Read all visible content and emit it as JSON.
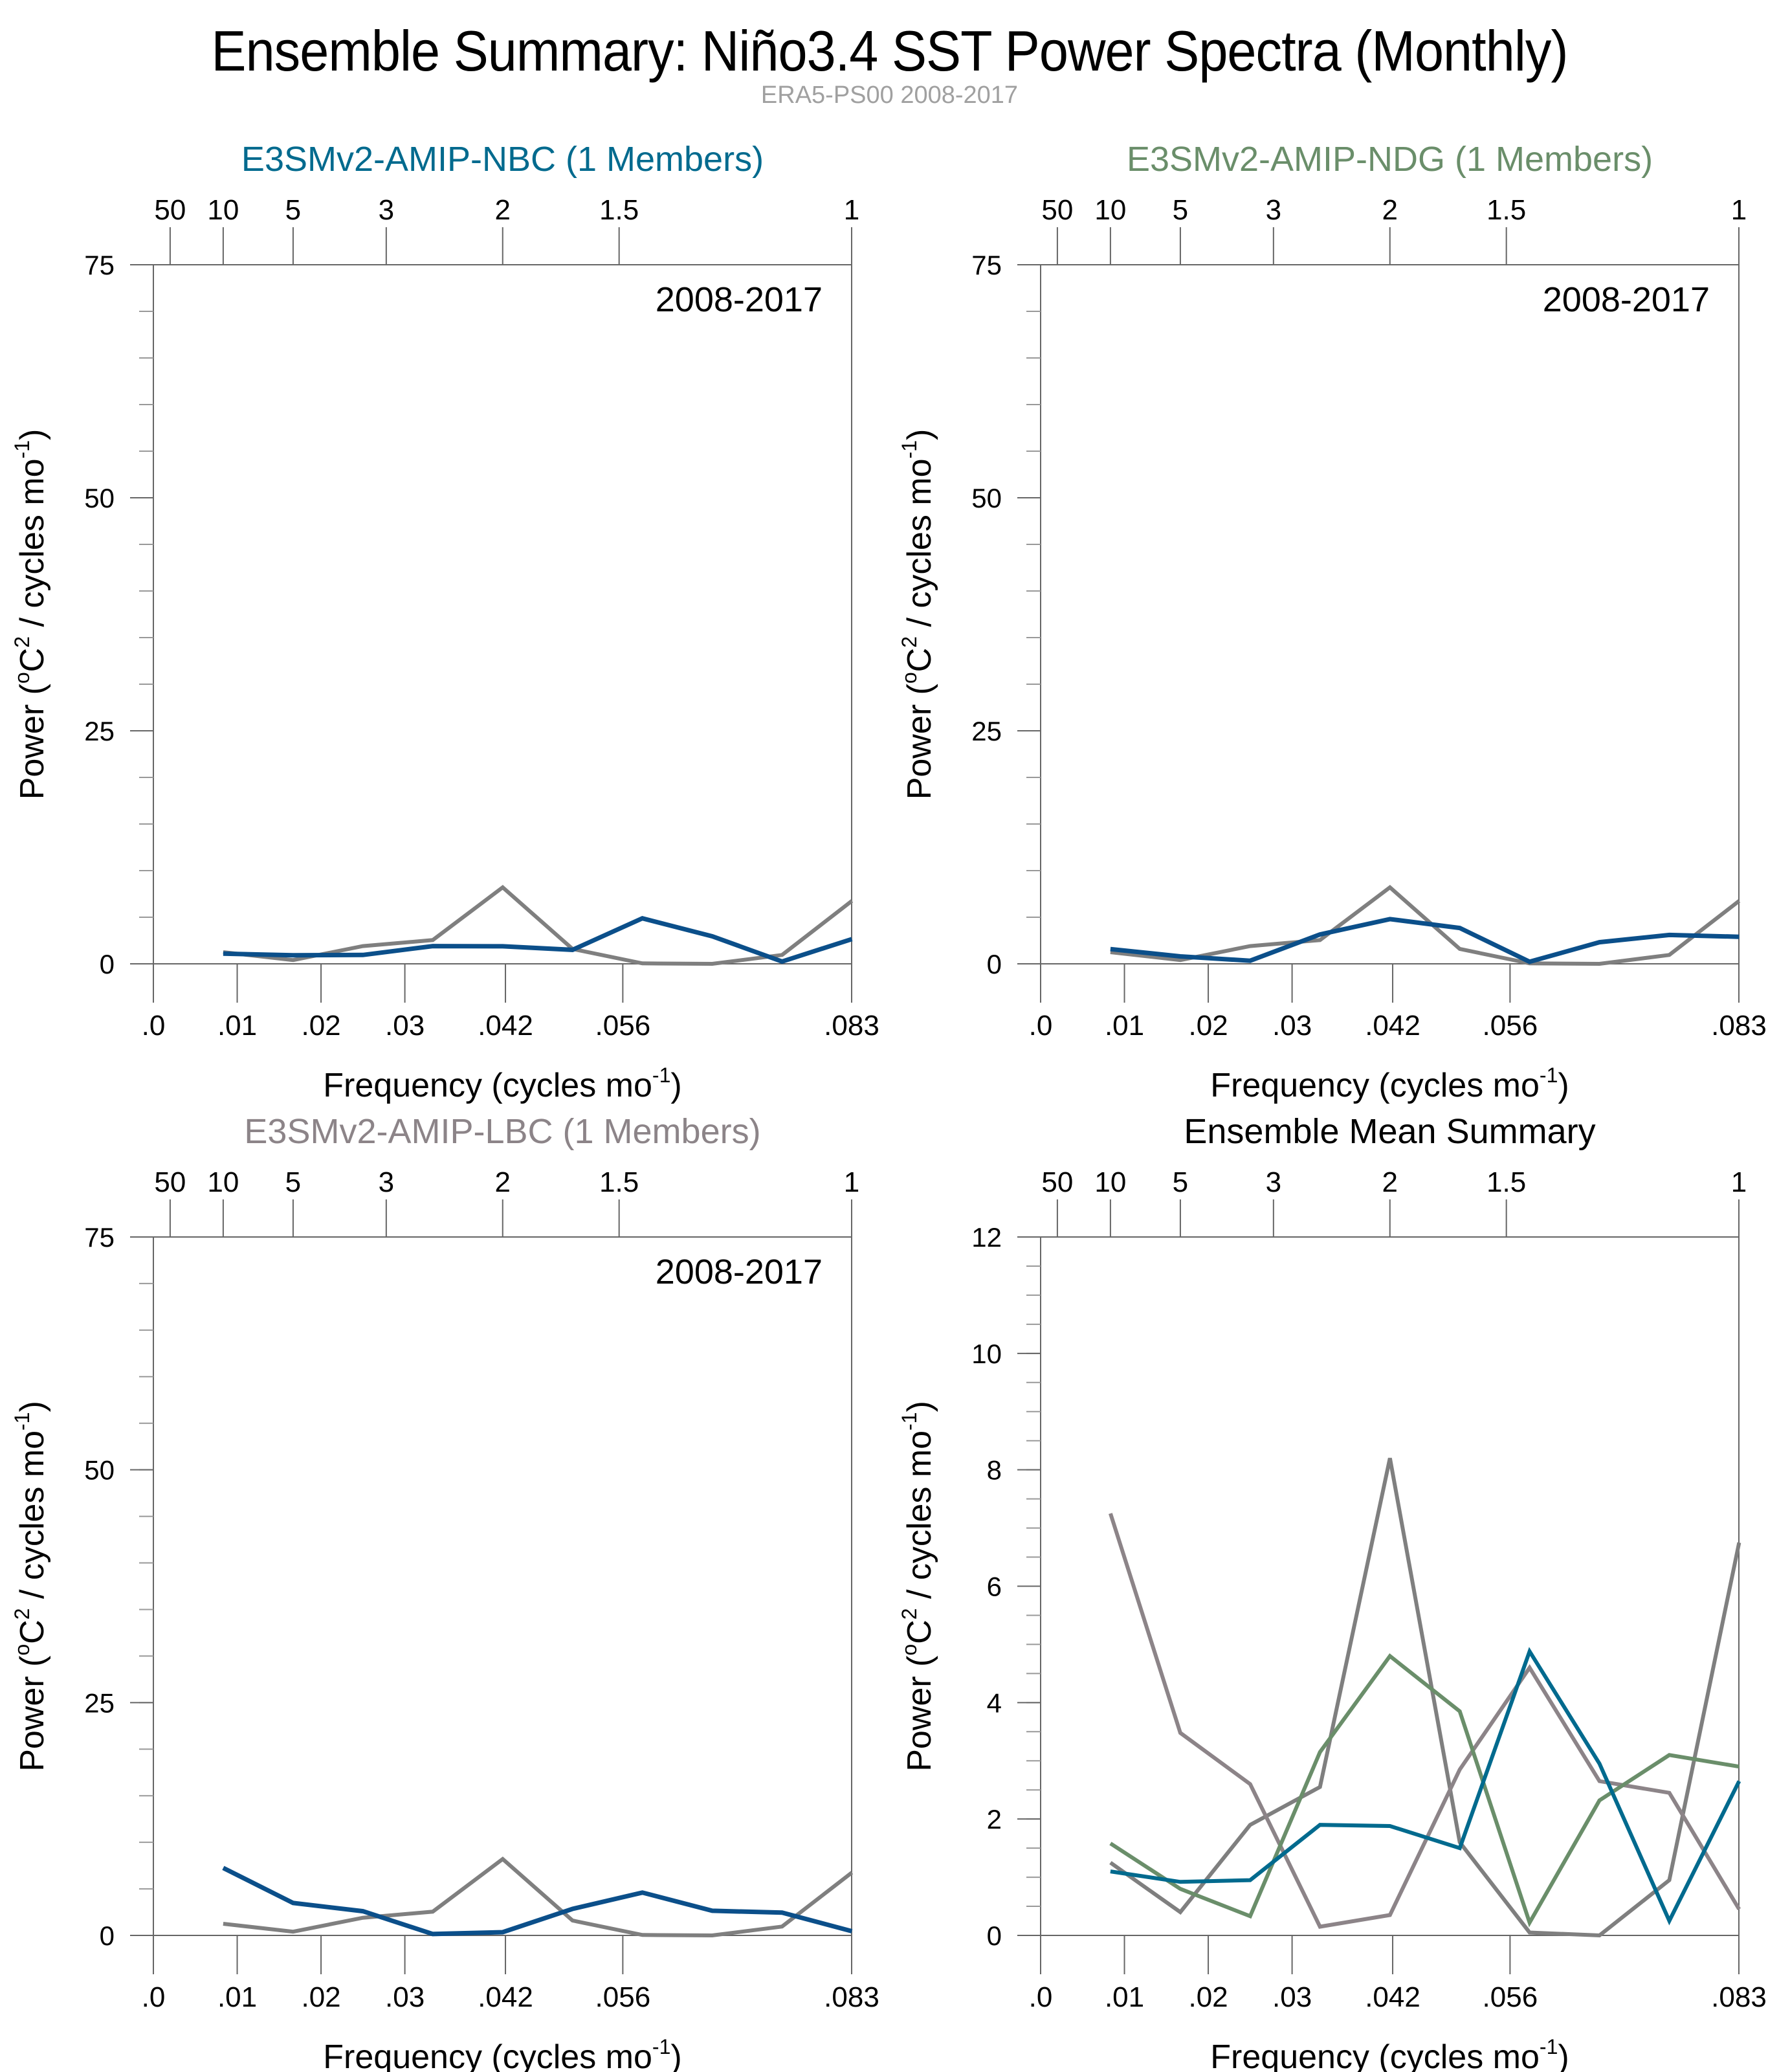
{
  "header": {
    "title": "Ensemble Summary: Niño3.4 SST Power Spectra (Monthly)",
    "subtitle": "ERA5-PS00 2008-2017"
  },
  "colors": {
    "observation": "#7f7f7f",
    "nbc": "#0b4f8a",
    "nbc_mean": "#006a8e",
    "ndg": "#6a8e6a",
    "lbc": "#8c8488",
    "axis": "#666666"
  },
  "chart_data": [
    {
      "type": "line",
      "id": "nbc",
      "title": "E3SMv2-AMIP-NBC (1 Members)",
      "title_color": "#006a8e",
      "annotation": "2008-2017",
      "xlabel": "Frequency (cycles mo",
      "xlabel_sup": "-1",
      "xlabel_close": ")",
      "ylabel": "Power (",
      "ylabel_sup1": "o",
      "ylabel_mid": "C",
      "ylabel_sup2": "2",
      "ylabel_rest": " / cycles mo",
      "ylabel_sup3": "-1",
      "ylabel_close": ")",
      "xlim": [
        0,
        0.0833
      ],
      "ylim": [
        0,
        75
      ],
      "yticks": [
        0,
        25,
        50,
        75
      ],
      "ytick_labels": [
        "0",
        "25",
        "50",
        "75"
      ],
      "y_minor_step": 5,
      "xticks": [
        0,
        0.01,
        0.02,
        0.03,
        0.042,
        0.056,
        0.0833
      ],
      "xtick_labels": [
        ".0",
        ".01",
        ".02",
        ".03",
        ".042",
        ".056",
        ".083"
      ],
      "top_ticks": [
        0.002,
        0.00833,
        0.01667,
        0.02778,
        0.04167,
        0.05556,
        0.0833
      ],
      "top_tick_labels": [
        "50",
        "10",
        "5",
        "3",
        "2",
        "1.5",
        "1"
      ],
      "x": [
        0.00833,
        0.01667,
        0.025,
        0.03333,
        0.04167,
        0.05,
        0.05833,
        0.06667,
        0.075,
        0.08333
      ],
      "series": [
        {
          "name": "ERA5-PS00",
          "color": "#7f7f7f",
          "width": 6,
          "values": [
            1.25,
            0.4,
            1.9,
            2.55,
            8.2,
            1.6,
            0.05,
            0.0,
            0.95,
            6.75
          ]
        },
        {
          "name": "E3SMv2-AMIP-NBC",
          "color": "#0b4f8a",
          "width": 7,
          "values": [
            1.1,
            0.92,
            0.95,
            1.9,
            1.88,
            1.5,
            4.88,
            2.95,
            0.25,
            2.65
          ]
        }
      ]
    },
    {
      "type": "line",
      "id": "ndg",
      "title": "E3SMv2-AMIP-NDG (1 Members)",
      "title_color": "#6a8e6a",
      "annotation": "2008-2017",
      "xlabel": "Frequency (cycles mo",
      "xlabel_sup": "-1",
      "xlabel_close": ")",
      "ylabel": "Power (",
      "ylabel_sup1": "o",
      "ylabel_mid": "C",
      "ylabel_sup2": "2",
      "ylabel_rest": " / cycles mo",
      "ylabel_sup3": "-1",
      "ylabel_close": ")",
      "xlim": [
        0,
        0.0833
      ],
      "ylim": [
        0,
        75
      ],
      "yticks": [
        0,
        25,
        50,
        75
      ],
      "ytick_labels": [
        "0",
        "25",
        "50",
        "75"
      ],
      "y_minor_step": 5,
      "xticks": [
        0,
        0.01,
        0.02,
        0.03,
        0.042,
        0.056,
        0.0833
      ],
      "xtick_labels": [
        ".0",
        ".01",
        ".02",
        ".03",
        ".042",
        ".056",
        ".083"
      ],
      "top_ticks": [
        0.002,
        0.00833,
        0.01667,
        0.02778,
        0.04167,
        0.05556,
        0.0833
      ],
      "top_tick_labels": [
        "50",
        "10",
        "5",
        "3",
        "2",
        "1.5",
        "1"
      ],
      "x": [
        0.00833,
        0.01667,
        0.025,
        0.03333,
        0.04167,
        0.05,
        0.05833,
        0.06667,
        0.075,
        0.08333
      ],
      "series": [
        {
          "name": "ERA5-PS00",
          "color": "#7f7f7f",
          "width": 6,
          "values": [
            1.25,
            0.4,
            1.9,
            2.55,
            8.2,
            1.6,
            0.05,
            0.0,
            0.95,
            6.75
          ]
        },
        {
          "name": "E3SMv2-AMIP-NDG",
          "color": "#0b4f8a",
          "width": 7,
          "values": [
            1.58,
            0.8,
            0.33,
            3.15,
            4.8,
            3.85,
            0.22,
            2.32,
            3.1,
            2.9
          ]
        }
      ]
    },
    {
      "type": "line",
      "id": "lbc",
      "title": "E3SMv2-AMIP-LBC (1 Members)",
      "title_color": "#8c8488",
      "annotation": "2008-2017",
      "xlabel": "Frequency (cycles mo",
      "xlabel_sup": "-1",
      "xlabel_close": ")",
      "ylabel": "Power (",
      "ylabel_sup1": "o",
      "ylabel_mid": "C",
      "ylabel_sup2": "2",
      "ylabel_rest": " / cycles mo",
      "ylabel_sup3": "-1",
      "ylabel_close": ")",
      "xlim": [
        0,
        0.0833
      ],
      "ylim": [
        0,
        75
      ],
      "yticks": [
        0,
        25,
        50,
        75
      ],
      "ytick_labels": [
        "0",
        "25",
        "50",
        "75"
      ],
      "y_minor_step": 5,
      "xticks": [
        0,
        0.01,
        0.02,
        0.03,
        0.042,
        0.056,
        0.0833
      ],
      "xtick_labels": [
        ".0",
        ".01",
        ".02",
        ".03",
        ".042",
        ".056",
        ".083"
      ],
      "top_ticks": [
        0.002,
        0.00833,
        0.01667,
        0.02778,
        0.04167,
        0.05556,
        0.0833
      ],
      "top_tick_labels": [
        "50",
        "10",
        "5",
        "3",
        "2",
        "1.5",
        "1"
      ],
      "x": [
        0.00833,
        0.01667,
        0.025,
        0.03333,
        0.04167,
        0.05,
        0.05833,
        0.06667,
        0.075,
        0.08333
      ],
      "series": [
        {
          "name": "ERA5-PS00",
          "color": "#7f7f7f",
          "width": 6,
          "values": [
            1.25,
            0.4,
            1.9,
            2.55,
            8.2,
            1.6,
            0.05,
            0.0,
            0.95,
            6.75
          ]
        },
        {
          "name": "E3SMv2-AMIP-LBC",
          "color": "#0b4f8a",
          "width": 7,
          "values": [
            7.25,
            3.48,
            2.6,
            0.15,
            0.35,
            2.85,
            4.6,
            2.65,
            2.45,
            0.45
          ]
        }
      ]
    },
    {
      "type": "line",
      "id": "mean",
      "title": "Ensemble Mean Summary",
      "title_color": "#000000",
      "annotation": "",
      "xlabel": "Frequency (cycles mo",
      "xlabel_sup": "-1",
      "xlabel_close": ")",
      "ylabel": "Power (",
      "ylabel_sup1": "o",
      "ylabel_mid": "C",
      "ylabel_sup2": "2",
      "ylabel_rest": " / cycles mo",
      "ylabel_sup3": "-1",
      "ylabel_close": ")",
      "xlim": [
        0,
        0.0833
      ],
      "ylim": [
        0,
        12
      ],
      "yticks": [
        0,
        2,
        4,
        6,
        8,
        10,
        12
      ],
      "ytick_labels": [
        "0",
        "2",
        "4",
        "6",
        "8",
        "10",
        "12"
      ],
      "y_minor_step": 0.5,
      "xticks": [
        0,
        0.01,
        0.02,
        0.03,
        0.042,
        0.056,
        0.0833
      ],
      "xtick_labels": [
        ".0",
        ".01",
        ".02",
        ".03",
        ".042",
        ".056",
        ".083"
      ],
      "top_ticks": [
        0.002,
        0.00833,
        0.01667,
        0.02778,
        0.04167,
        0.05556,
        0.0833
      ],
      "top_tick_labels": [
        "50",
        "10",
        "5",
        "3",
        "2",
        "1.5",
        "1"
      ],
      "x": [
        0.00833,
        0.01667,
        0.025,
        0.03333,
        0.04167,
        0.05,
        0.05833,
        0.06667,
        0.075,
        0.08333
      ],
      "series": [
        {
          "name": "ERA5-PS00",
          "color": "#7f7f7f",
          "width": 6,
          "values": [
            1.25,
            0.4,
            1.9,
            2.55,
            8.2,
            1.6,
            0.05,
            0.0,
            0.95,
            6.75
          ]
        },
        {
          "name": "E3SMv2-AMIP-LBC",
          "color": "#8c8488",
          "width": 6,
          "values": [
            7.25,
            3.48,
            2.6,
            0.15,
            0.35,
            2.85,
            4.6,
            2.65,
            2.45,
            0.45
          ]
        },
        {
          "name": "E3SMv2-AMIP-NDG",
          "color": "#6a8e6a",
          "width": 6,
          "values": [
            1.58,
            0.8,
            0.33,
            3.15,
            4.8,
            3.85,
            0.22,
            2.32,
            3.1,
            2.9
          ]
        },
        {
          "name": "E3SMv2-AMIP-NBC",
          "color": "#006a8e",
          "width": 6,
          "values": [
            1.1,
            0.92,
            0.95,
            1.9,
            1.88,
            1.5,
            4.88,
            2.95,
            0.25,
            2.65
          ]
        }
      ]
    }
  ]
}
